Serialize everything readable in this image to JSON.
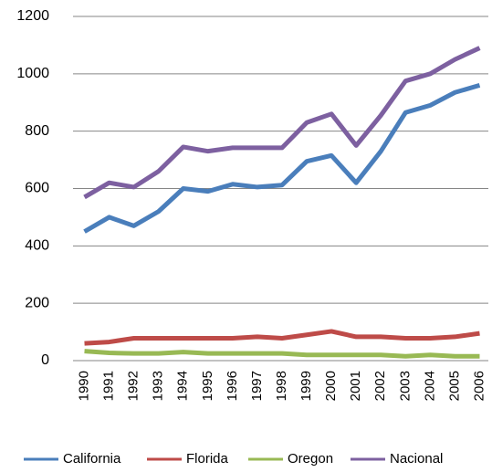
{
  "chart_data": {
    "type": "line",
    "categories": [
      "1990",
      "1991",
      "1992",
      "1993",
      "1994",
      "1995",
      "1996",
      "1997",
      "1998",
      "1999",
      "2000",
      "2001",
      "2002",
      "2003",
      "2004",
      "2005",
      "2006"
    ],
    "series": [
      {
        "name": "California",
        "color": "#4a7ebb",
        "values": [
          450,
          500,
          470,
          520,
          600,
          590,
          615,
          605,
          612,
          695,
          715,
          620,
          730,
          865,
          890,
          935,
          960
        ]
      },
      {
        "name": "Florida",
        "color": "#be4b48",
        "values": [
          60,
          65,
          78,
          78,
          78,
          78,
          78,
          83,
          78,
          90,
          102,
          83,
          83,
          78,
          78,
          83,
          95
        ]
      },
      {
        "name": "Oregon",
        "color": "#98b954",
        "values": [
          33,
          27,
          25,
          25,
          30,
          25,
          25,
          25,
          25,
          20,
          20,
          20,
          20,
          15,
          20,
          15,
          15
        ]
      },
      {
        "name": "Nacional",
        "color": "#7d60a0",
        "values": [
          570,
          620,
          605,
          660,
          745,
          730,
          742,
          742,
          742,
          830,
          860,
          750,
          855,
          975,
          1000,
          1050,
          1090
        ]
      }
    ],
    "ylim": [
      0,
      1200
    ],
    "yticks": [
      0,
      200,
      400,
      600,
      800,
      1000,
      1200
    ],
    "grid": true,
    "legend": "bottom"
  }
}
